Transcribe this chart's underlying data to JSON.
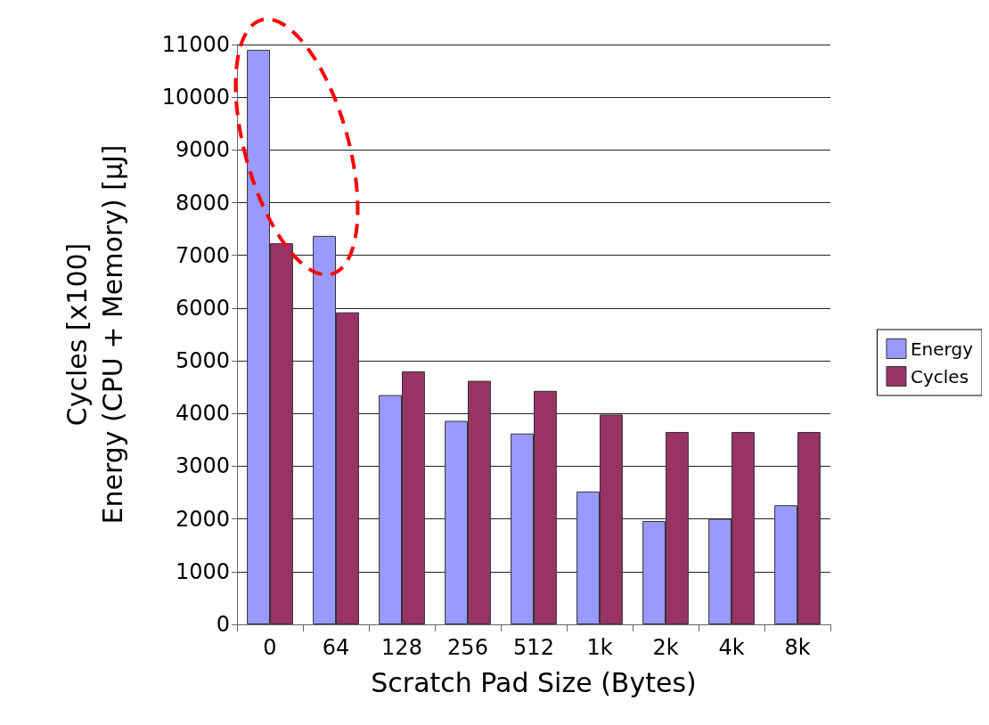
{
  "chart_data": {
    "type": "bar",
    "xlabel": "Scratch Pad Size (Bytes)",
    "ylabel": "Cycles [x100]\nEnergy (CPU + Memory) [µJ]",
    "categories": [
      "0",
      "64",
      "128",
      "256",
      "512",
      "1k",
      "2k",
      "4k",
      "8k"
    ],
    "series": [
      {
        "name": "Energy",
        "color": "#9999ff",
        "values": [
          10900,
          7370,
          4350,
          3860,
          3620,
          2520,
          1960,
          2000,
          2260
        ]
      },
      {
        "name": "Cycles",
        "color": "#993366",
        "values": [
          7230,
          5920,
          4800,
          4620,
          4430,
          3980,
          3650,
          3650,
          3650
        ]
      }
    ],
    "ylim": [
      0,
      11000
    ],
    "yticks": [
      0,
      1000,
      2000,
      3000,
      4000,
      5000,
      6000,
      7000,
      8000,
      9000,
      10000,
      11000
    ],
    "grid": "y",
    "legend": "right"
  }
}
